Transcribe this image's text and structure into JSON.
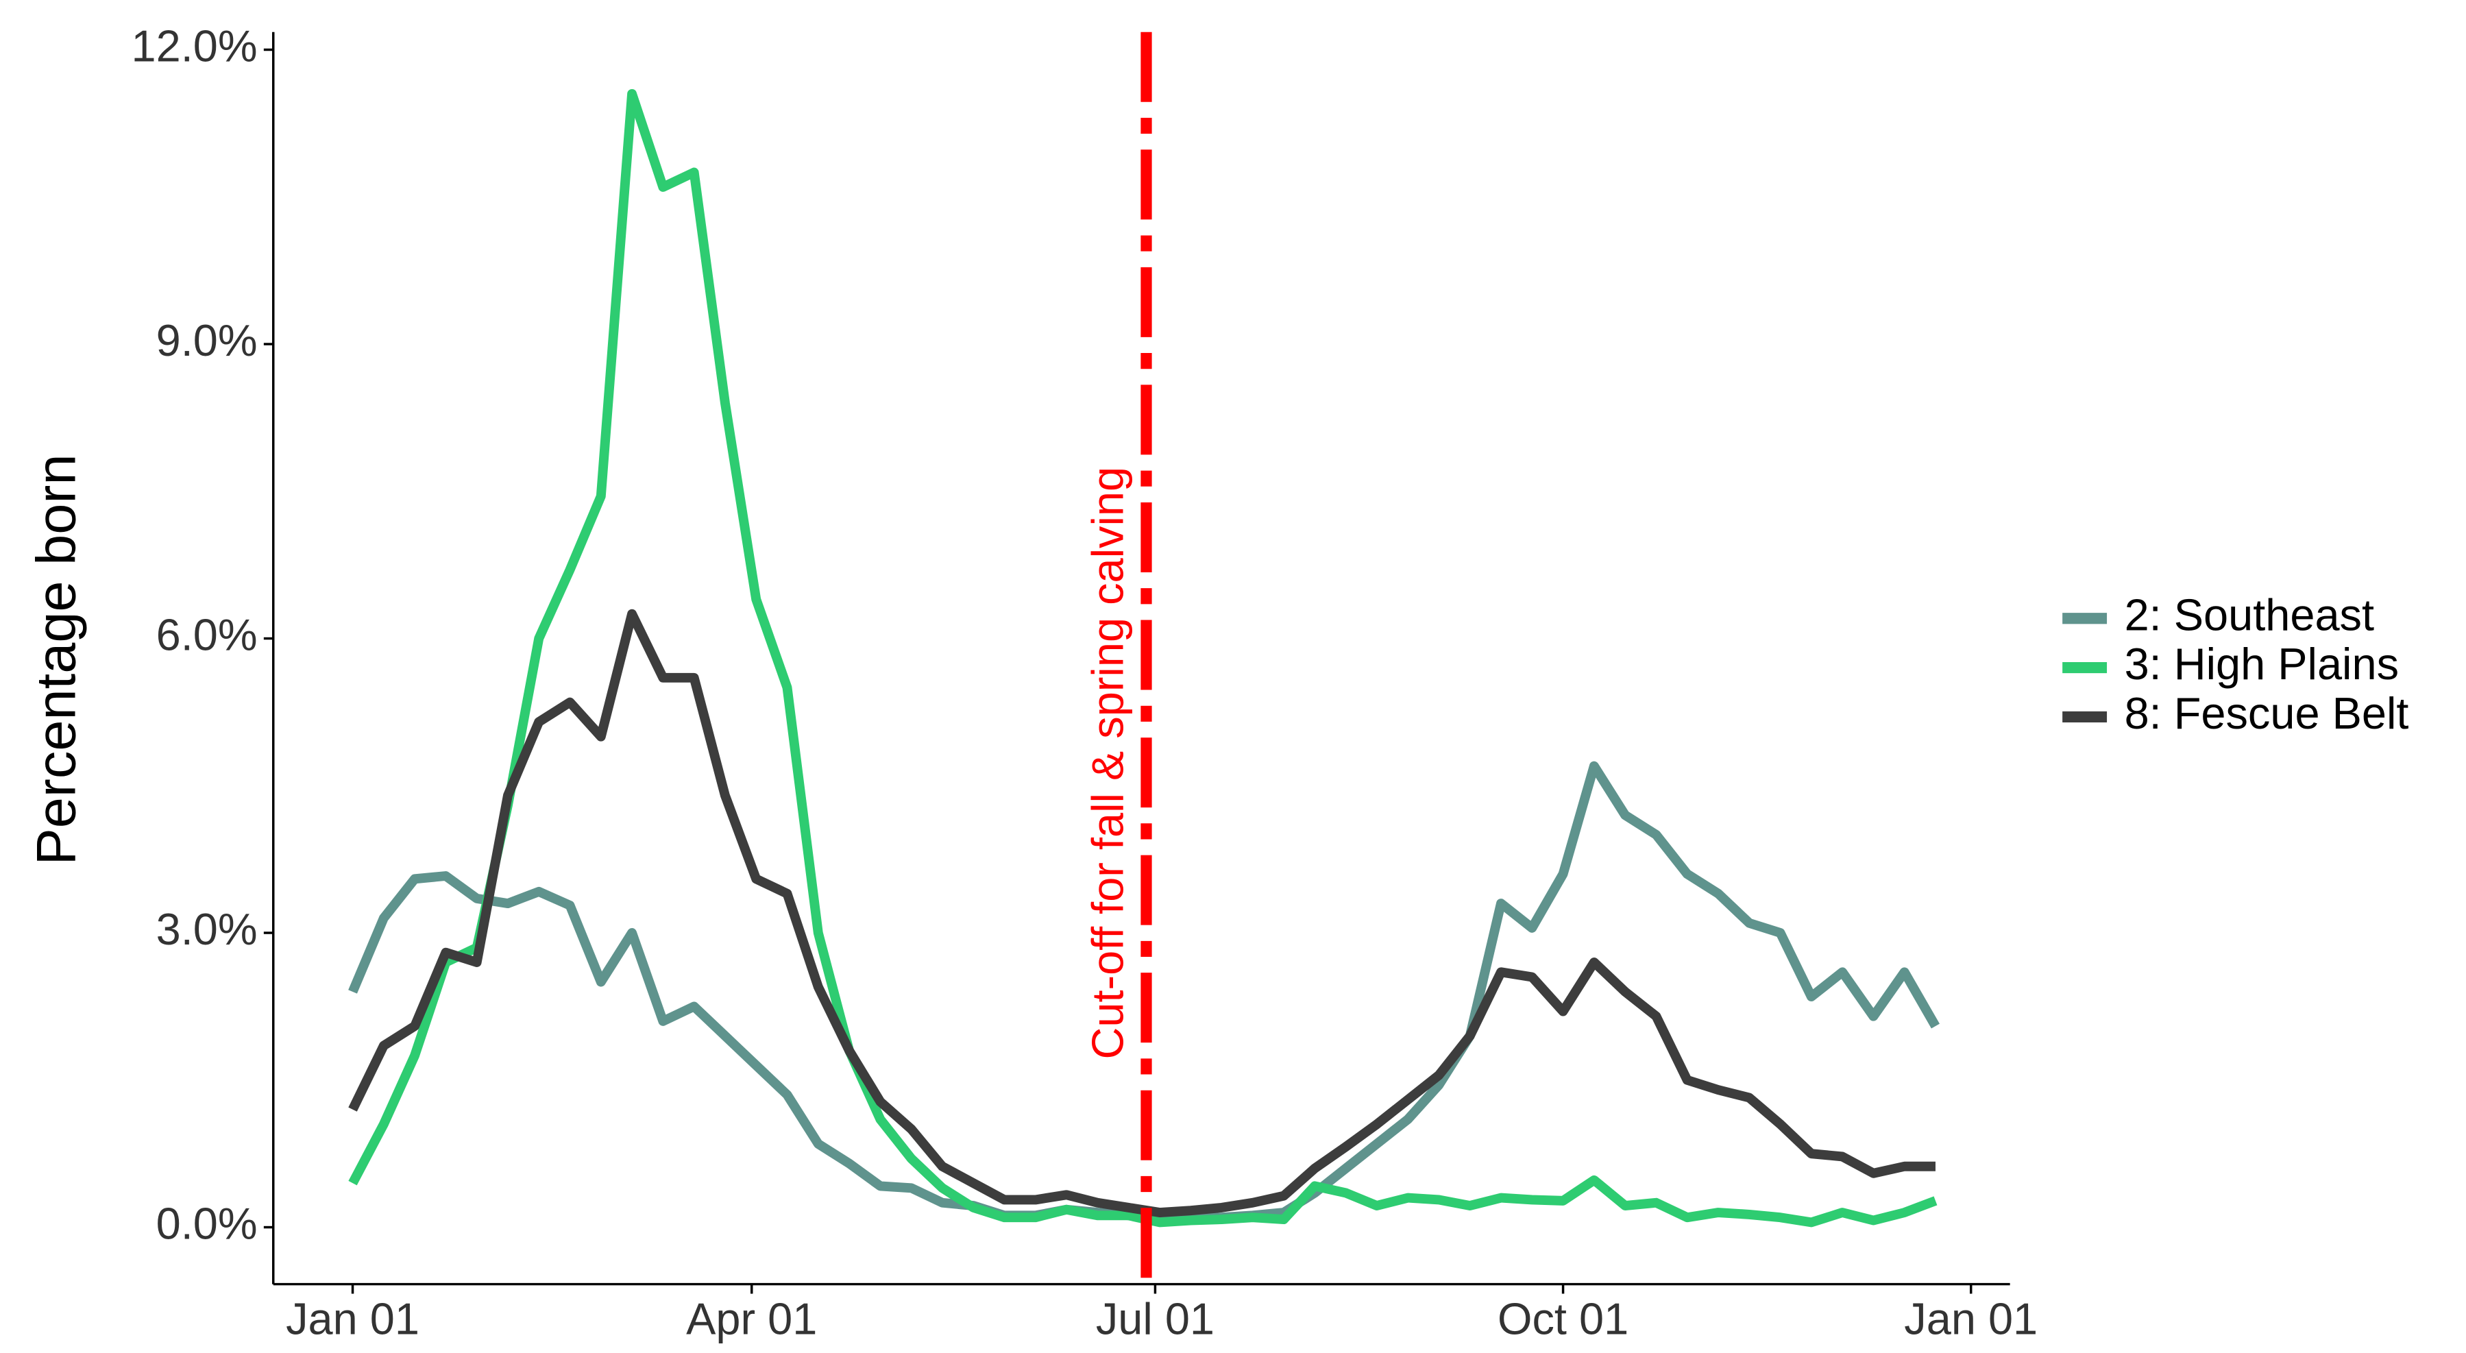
{
  "chart_data": {
    "type": "line",
    "ylabel": "Percentage born",
    "x": [
      0,
      7,
      14,
      21,
      28,
      35,
      42,
      49,
      56,
      63,
      70,
      77,
      84,
      91,
      98,
      105,
      112,
      119,
      126,
      133,
      140,
      147,
      154,
      161,
      168,
      175,
      182,
      189,
      196,
      203,
      210,
      217,
      224,
      231,
      238,
      245,
      252,
      259,
      266,
      273,
      280,
      287,
      294,
      301,
      308,
      315,
      322,
      329,
      336,
      343,
      350,
      357
    ],
    "series": [
      {
        "name": "2: Southeast",
        "color": "#5f938d",
        "values": [
          2.4,
          3.15,
          3.55,
          3.58,
          3.35,
          3.3,
          3.42,
          3.28,
          2.5,
          3.0,
          2.1,
          2.25,
          1.95,
          1.65,
          1.35,
          0.85,
          0.65,
          0.42,
          0.4,
          0.25,
          0.22,
          0.12,
          0.12,
          0.18,
          0.15,
          0.12,
          0.12,
          0.1,
          0.1,
          0.12,
          0.15,
          0.35,
          0.6,
          0.85,
          1.1,
          1.45,
          1.95,
          3.3,
          3.05,
          3.6,
          4.7,
          4.2,
          4.0,
          3.6,
          3.4,
          3.1,
          3.0,
          2.35,
          2.6,
          2.15,
          2.6,
          2.05
        ]
      },
      {
        "name": "3: High Plains",
        "color": "#2ecc71",
        "values": [
          0.45,
          1.05,
          1.75,
          2.7,
          2.85,
          4.3,
          6.0,
          6.7,
          7.45,
          11.55,
          10.6,
          10.75,
          8.4,
          6.4,
          5.5,
          3.0,
          1.8,
          1.1,
          0.7,
          0.4,
          0.2,
          0.1,
          0.1,
          0.18,
          0.12,
          0.12,
          0.05,
          0.07,
          0.08,
          0.1,
          0.08,
          0.42,
          0.35,
          0.22,
          0.3,
          0.28,
          0.22,
          0.3,
          0.28,
          0.27,
          0.48,
          0.22,
          0.25,
          0.1,
          0.15,
          0.13,
          0.1,
          0.05,
          0.15,
          0.07,
          0.15,
          0.27
        ]
      },
      {
        "name": "8: Fescue Belt",
        "color": "#3d3d3d",
        "values": [
          1.2,
          1.85,
          2.05,
          2.8,
          2.7,
          4.4,
          5.15,
          5.35,
          5.0,
          6.25,
          5.6,
          5.6,
          4.4,
          3.55,
          3.4,
          2.45,
          1.8,
          1.28,
          1.0,
          0.62,
          0.45,
          0.28,
          0.28,
          0.33,
          0.25,
          0.2,
          0.15,
          0.17,
          0.2,
          0.25,
          0.32,
          0.6,
          0.82,
          1.05,
          1.3,
          1.55,
          1.95,
          2.6,
          2.55,
          2.2,
          2.7,
          2.4,
          2.15,
          1.5,
          1.4,
          1.32,
          1.05,
          0.75,
          0.72,
          0.55,
          0.62,
          0.62
        ]
      }
    ],
    "xlim": [
      -17.9,
      373.8
    ],
    "xticks": [
      {
        "value": 0,
        "label": "Jan 01"
      },
      {
        "value": 90,
        "label": "Apr 01"
      },
      {
        "value": 181,
        "label": "Jul 01"
      },
      {
        "value": 273,
        "label": "Oct 01"
      },
      {
        "value": 365,
        "label": "Jan 01"
      }
    ],
    "ylim": [
      -0.58,
      12.18
    ],
    "yticks": [
      {
        "value": 0,
        "label": "0.0%"
      },
      {
        "value": 3,
        "label": "3.0%"
      },
      {
        "value": 6,
        "label": "6.0%"
      },
      {
        "value": 9,
        "label": "9.0%"
      },
      {
        "value": 12,
        "label": "12.0%"
      }
    ],
    "vline": {
      "x": 179,
      "label": "Cut-off for fall & spring calving",
      "color": "#ff0000"
    },
    "legend": "right"
  }
}
